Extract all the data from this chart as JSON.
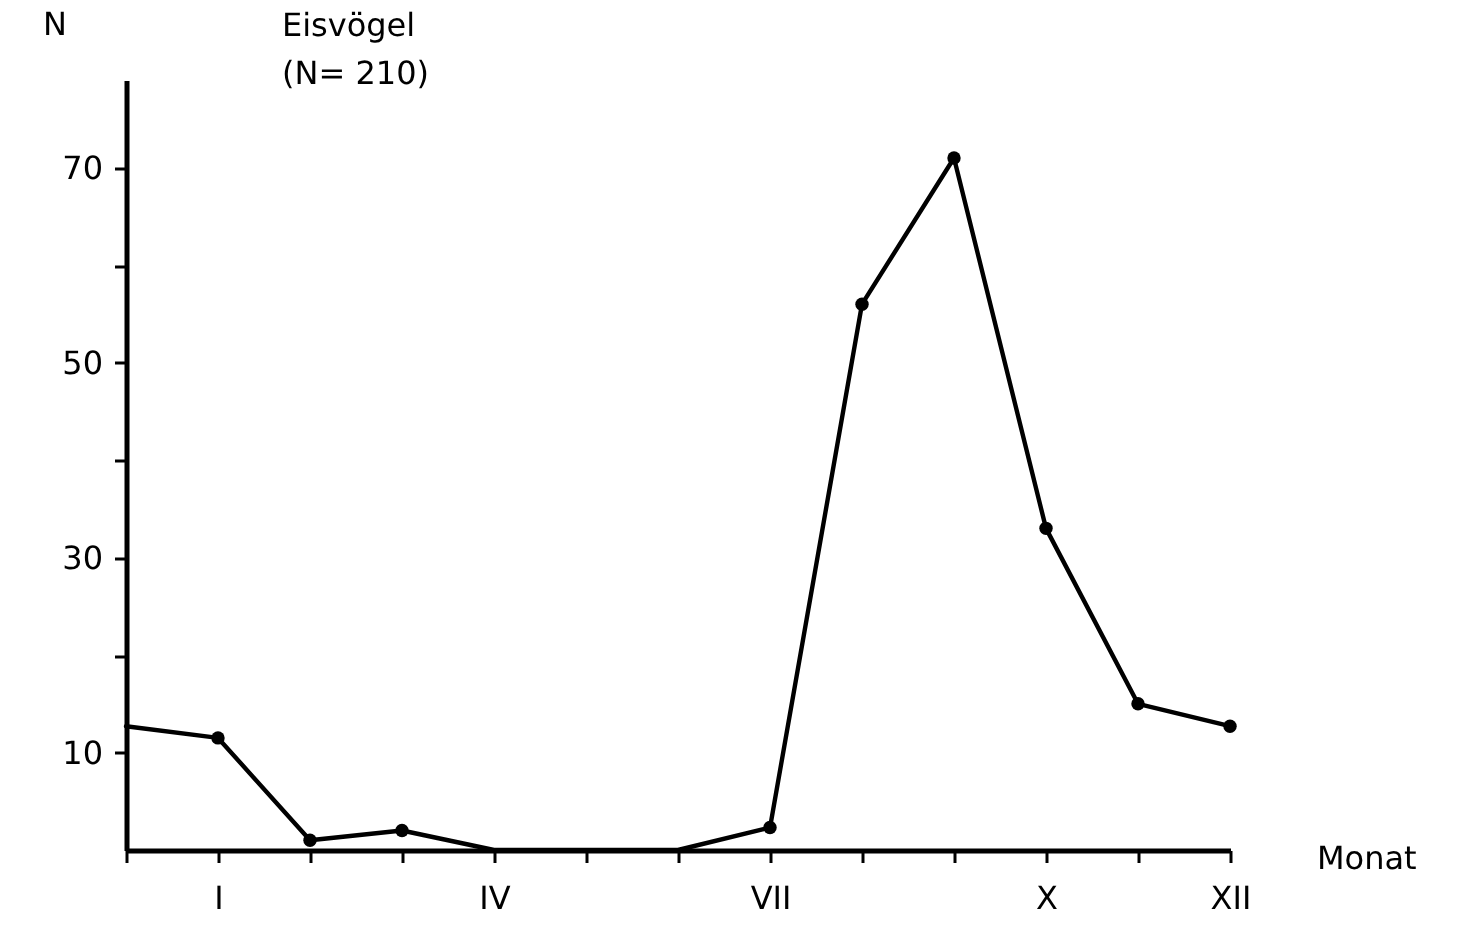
{
  "chart_data": {
    "type": "line",
    "title": "Eisvögel",
    "subtitle": "(N= 210)",
    "xlabel": "Monat",
    "ylabel": "N",
    "grid": false,
    "categories": [
      null,
      "I",
      null,
      null,
      "IV",
      null,
      null,
      "VII",
      null,
      null,
      "X",
      null,
      "XII"
    ],
    "ylim": [
      0,
      79
    ],
    "yticks": [
      10,
      {
        "value": 20,
        "label": null
      },
      30,
      {
        "value": 40,
        "label": null
      },
      50,
      {
        "value": 60,
        "label": null
      },
      70
    ],
    "series": [
      {
        "color": "#000000",
        "marker": "none",
        "values": [
          12.7,
          11.5,
          1,
          2,
          0,
          0,
          0,
          2.3,
          56,
          71,
          33,
          15,
          12.7
        ]
      },
      {
        "type": "scatter",
        "color": "#000000",
        "marker": "circle",
        "values": [
          null,
          11.5,
          1,
          2,
          null,
          null,
          null,
          2.3,
          56,
          71,
          33,
          15,
          12.7
        ]
      }
    ]
  }
}
